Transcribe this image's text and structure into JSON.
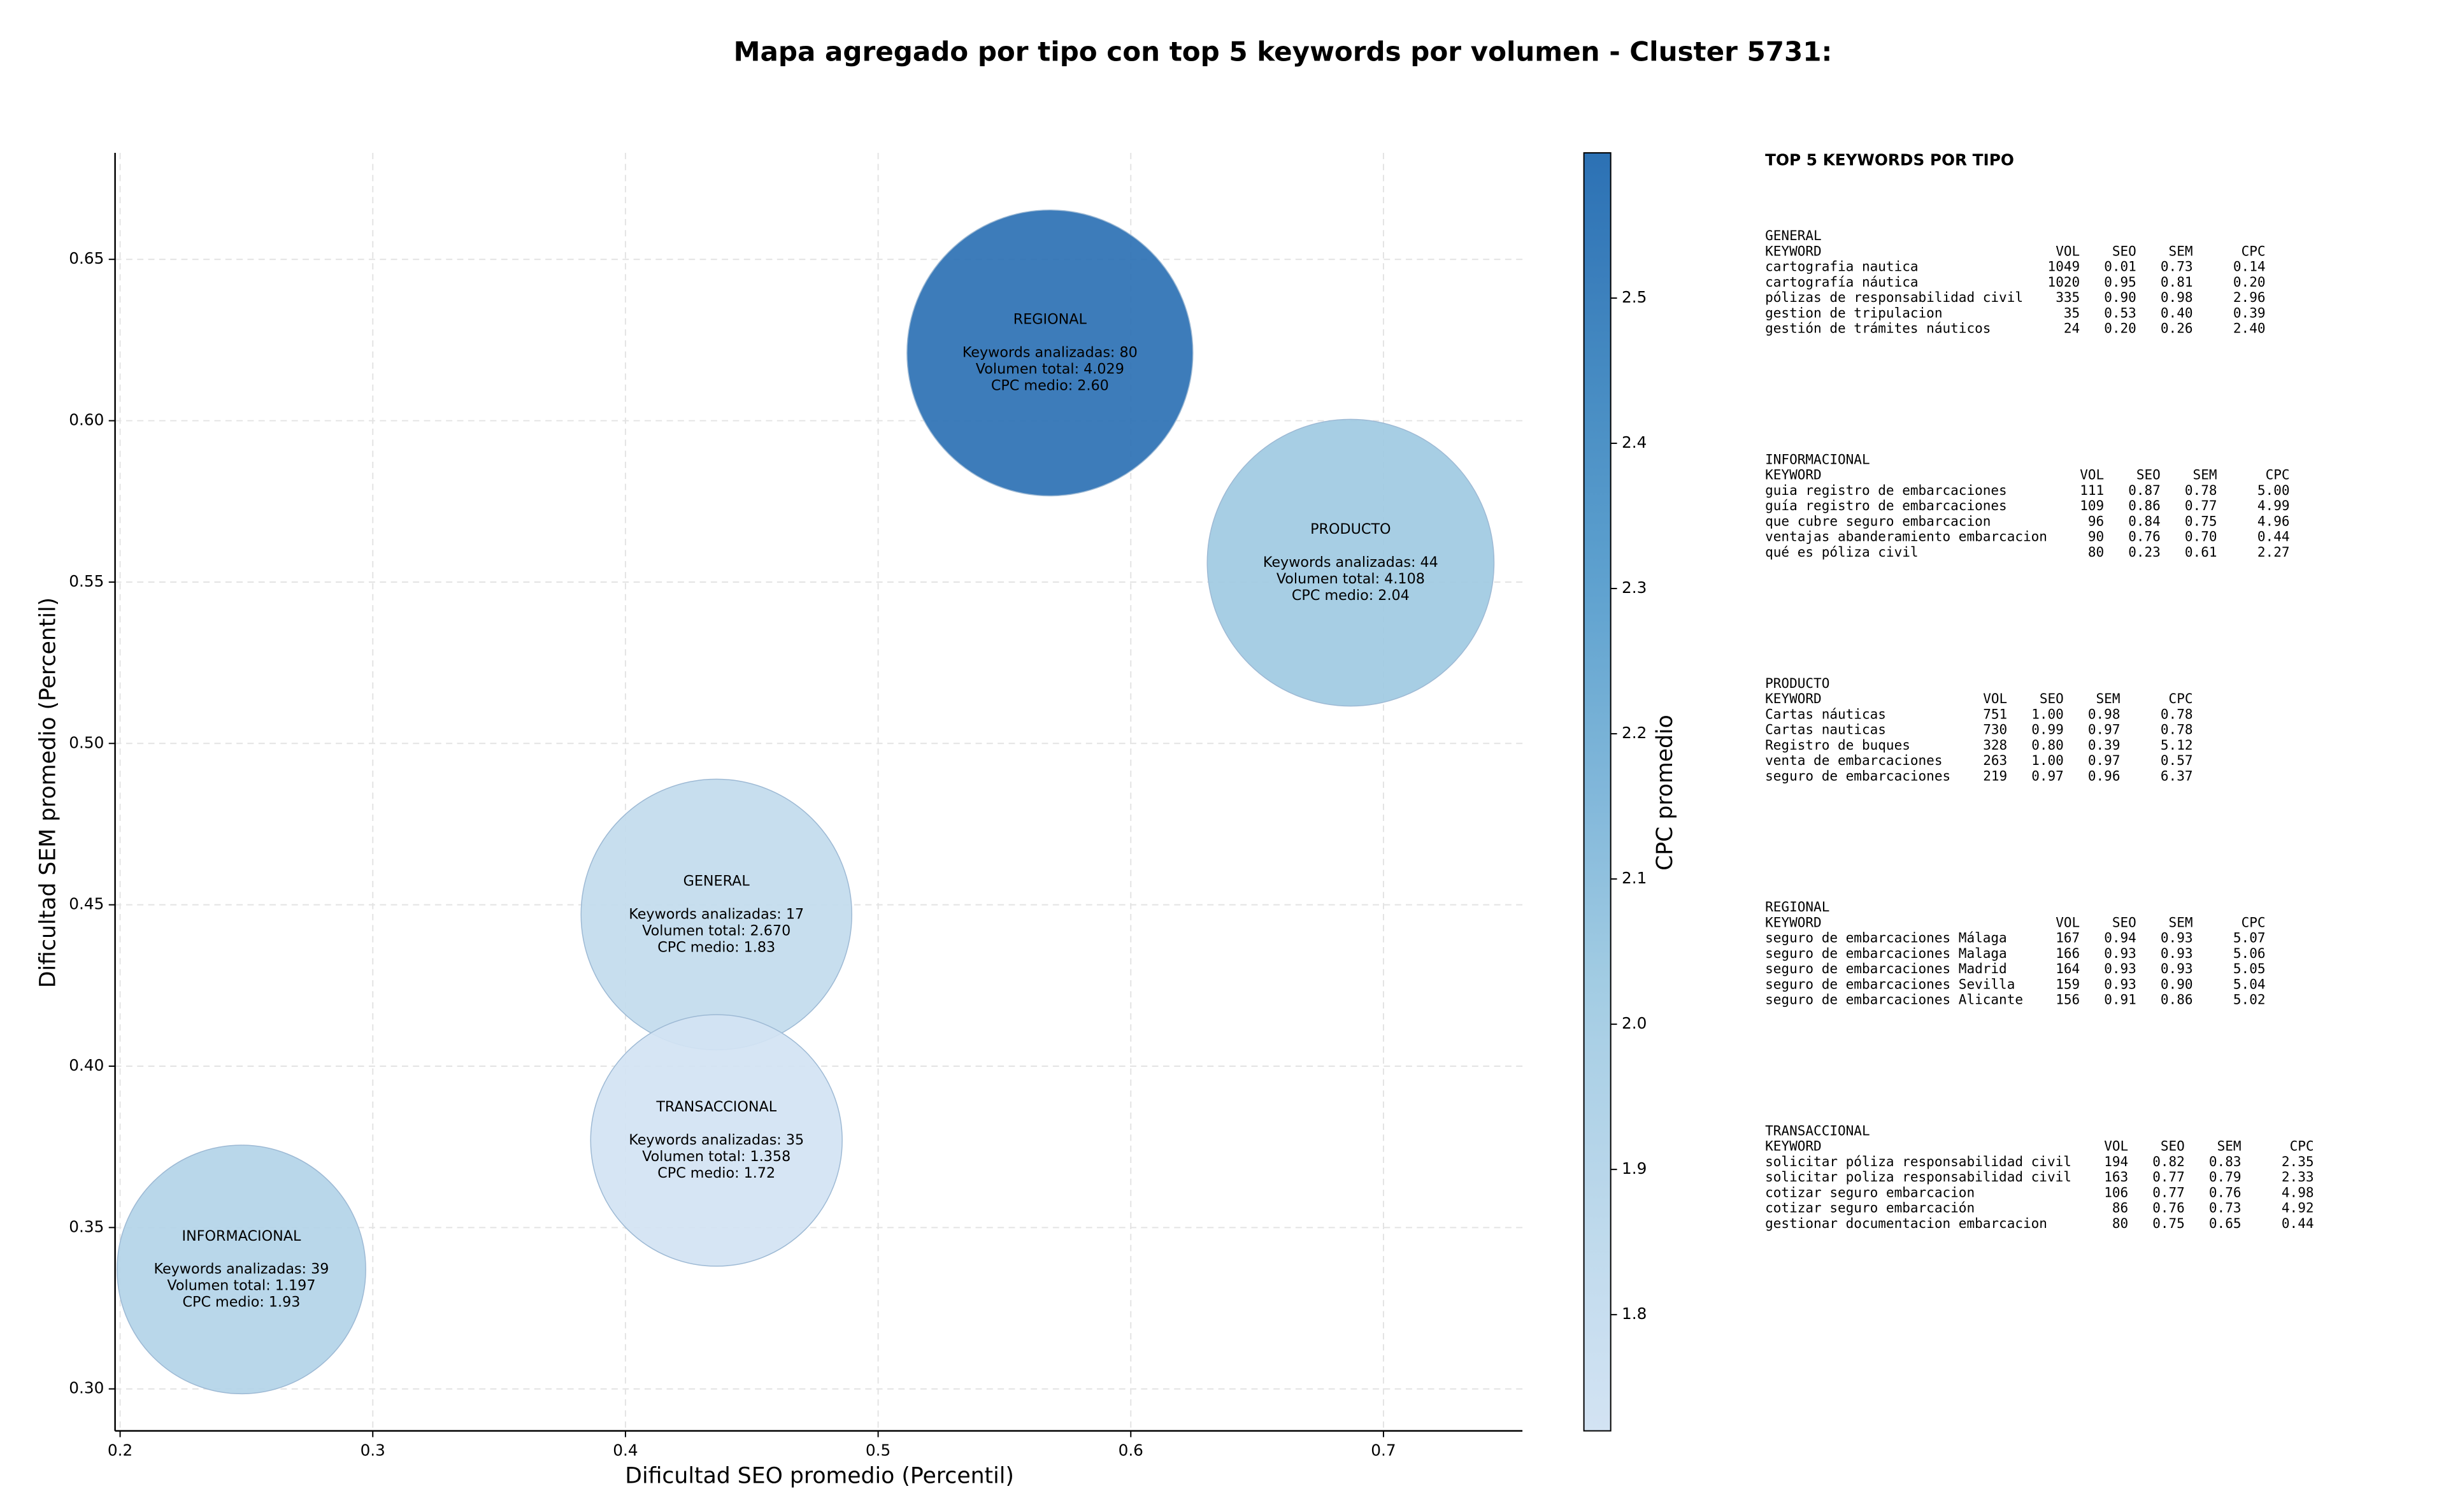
{
  "chart_data": {
    "type": "bubble",
    "title": "Mapa agregado por tipo con top 5 keywords por volumen - Cluster 5731:",
    "xlabel": "Dificultad SEO promedio (Percentil)",
    "ylabel": "Dificultad SEM promedio (Percentil)",
    "xlim": [
      0.198,
      0.755
    ],
    "ylim": [
      0.287,
      0.683
    ],
    "xticks": [
      0.2,
      0.3,
      0.4,
      0.5,
      0.6,
      0.7
    ],
    "yticks": [
      {
        "value": 0.3,
        "label": "0.30"
      },
      0.35,
      {
        "value": 0.4,
        "label": "0.40"
      },
      0.45,
      {
        "value": 0.5,
        "label": "0.50"
      },
      0.55,
      {
        "value": 0.6,
        "label": "0.60"
      },
      0.65
    ],
    "grid": true,
    "colorbar": {
      "label": "CPC promedio",
      "lim": [
        1.72,
        2.6
      ],
      "ticks": [
        1.8,
        1.9,
        {
          "value": 2.0,
          "label": "2.0"
        },
        2.1,
        2.2,
        2.3,
        2.4,
        2.5
      ],
      "colors": [
        "#d3e3f3",
        "#a6cee4",
        "#5da1cf",
        "#2c71b4"
      ]
    },
    "points": [
      {
        "name": "GENERAL",
        "x": 0.436,
        "y": 0.447,
        "volume": 2670,
        "cpc": 1.83,
        "text": [
          "Keywords analizadas: 17",
          "Volumen total: 2.670",
          "CPC medio: 1.83"
        ]
      },
      {
        "name": "INFORMACIONAL",
        "x": 0.248,
        "y": 0.337,
        "volume": 1197,
        "cpc": 1.93,
        "text": [
          "Keywords analizadas: 39",
          "Volumen total: 1.197",
          "CPC medio: 1.93"
        ]
      },
      {
        "name": "PRODUCTO",
        "x": 0.687,
        "y": 0.556,
        "volume": 4108,
        "cpc": 2.04,
        "text": [
          "Keywords analizadas: 44",
          "Volumen total: 4.108",
          "CPC medio: 2.04"
        ]
      },
      {
        "name": "REGIONAL",
        "x": 0.568,
        "y": 0.621,
        "volume": 4029,
        "cpc": 2.6,
        "text": [
          "Keywords analizadas: 80",
          "Volumen total: 4.029",
          "CPC medio: 2.60"
        ]
      },
      {
        "name": "TRANSACCIONAL",
        "x": 0.436,
        "y": 0.377,
        "volume": 1358,
        "cpc": 1.72,
        "text": [
          "Keywords analizadas: 35",
          "Volumen total: 1.358",
          "CPC medio: 1.72"
        ]
      }
    ]
  },
  "side_panel": {
    "title": "TOP 5 KEYWORDS POR TIPO",
    "columns": [
      "KEYWORD",
      "VOL",
      "SEO",
      "SEM",
      "CPC"
    ],
    "groups": [
      {
        "name": "GENERAL",
        "rows": [
          [
            "cartografia nautica",
            "1049",
            "0.01",
            "0.73",
            "0.14"
          ],
          [
            "cartografía náutica",
            "1020",
            "0.95",
            "0.81",
            "0.20"
          ],
          [
            "pólizas de responsabilidad civil",
            "335",
            "0.90",
            "0.98",
            "2.96"
          ],
          [
            "gestion de tripulacion",
            "35",
            "0.53",
            "0.40",
            "0.39"
          ],
          [
            "gestión de trámites náuticos",
            "24",
            "0.20",
            "0.26",
            "2.40"
          ]
        ]
      },
      {
        "name": "INFORMACIONAL",
        "rows": [
          [
            "guia registro de embarcaciones",
            "111",
            "0.87",
            "0.78",
            "5.00"
          ],
          [
            "guía registro de embarcaciones",
            "109",
            "0.86",
            "0.77",
            "4.99"
          ],
          [
            "que cubre seguro embarcacion",
            "96",
            "0.84",
            "0.75",
            "4.96"
          ],
          [
            "ventajas abanderamiento embarcacion",
            "90",
            "0.76",
            "0.70",
            "0.44"
          ],
          [
            "qué es póliza civil",
            "80",
            "0.23",
            "0.61",
            "2.27"
          ]
        ]
      },
      {
        "name": "PRODUCTO",
        "rows": [
          [
            "Cartas náuticas",
            "751",
            "1.00",
            "0.98",
            "0.78"
          ],
          [
            "Cartas nauticas",
            "730",
            "0.99",
            "0.97",
            "0.78"
          ],
          [
            "Registro de buques",
            "328",
            "0.80",
            "0.39",
            "5.12"
          ],
          [
            "venta de embarcaciones",
            "263",
            "1.00",
            "0.97",
            "0.57"
          ],
          [
            "seguro de embarcaciones",
            "219",
            "0.97",
            "0.96",
            "6.37"
          ]
        ]
      },
      {
        "name": "REGIONAL",
        "rows": [
          [
            "seguro de embarcaciones Málaga",
            "167",
            "0.94",
            "0.93",
            "5.07"
          ],
          [
            "seguro de embarcaciones Malaga",
            "166",
            "0.93",
            "0.93",
            "5.06"
          ],
          [
            "seguro de embarcaciones Madrid",
            "164",
            "0.93",
            "0.93",
            "5.05"
          ],
          [
            "seguro de embarcaciones Sevilla",
            "159",
            "0.93",
            "0.90",
            "5.04"
          ],
          [
            "seguro de embarcaciones Alicante",
            "156",
            "0.91",
            "0.86",
            "5.02"
          ]
        ]
      },
      {
        "name": "TRANSACCIONAL",
        "rows": [
          [
            "solicitar póliza responsabilidad civil",
            "194",
            "0.82",
            "0.83",
            "2.35"
          ],
          [
            "solicitar poliza responsabilidad civil",
            "163",
            "0.77",
            "0.79",
            "2.33"
          ],
          [
            "cotizar seguro embarcacion",
            "106",
            "0.77",
            "0.76",
            "4.98"
          ],
          [
            "cotizar seguro embarcación",
            "86",
            "0.76",
            "0.73",
            "4.92"
          ],
          [
            "gestionar documentacion embarcacion",
            "80",
            "0.75",
            "0.65",
            "0.44"
          ]
        ]
      }
    ]
  }
}
